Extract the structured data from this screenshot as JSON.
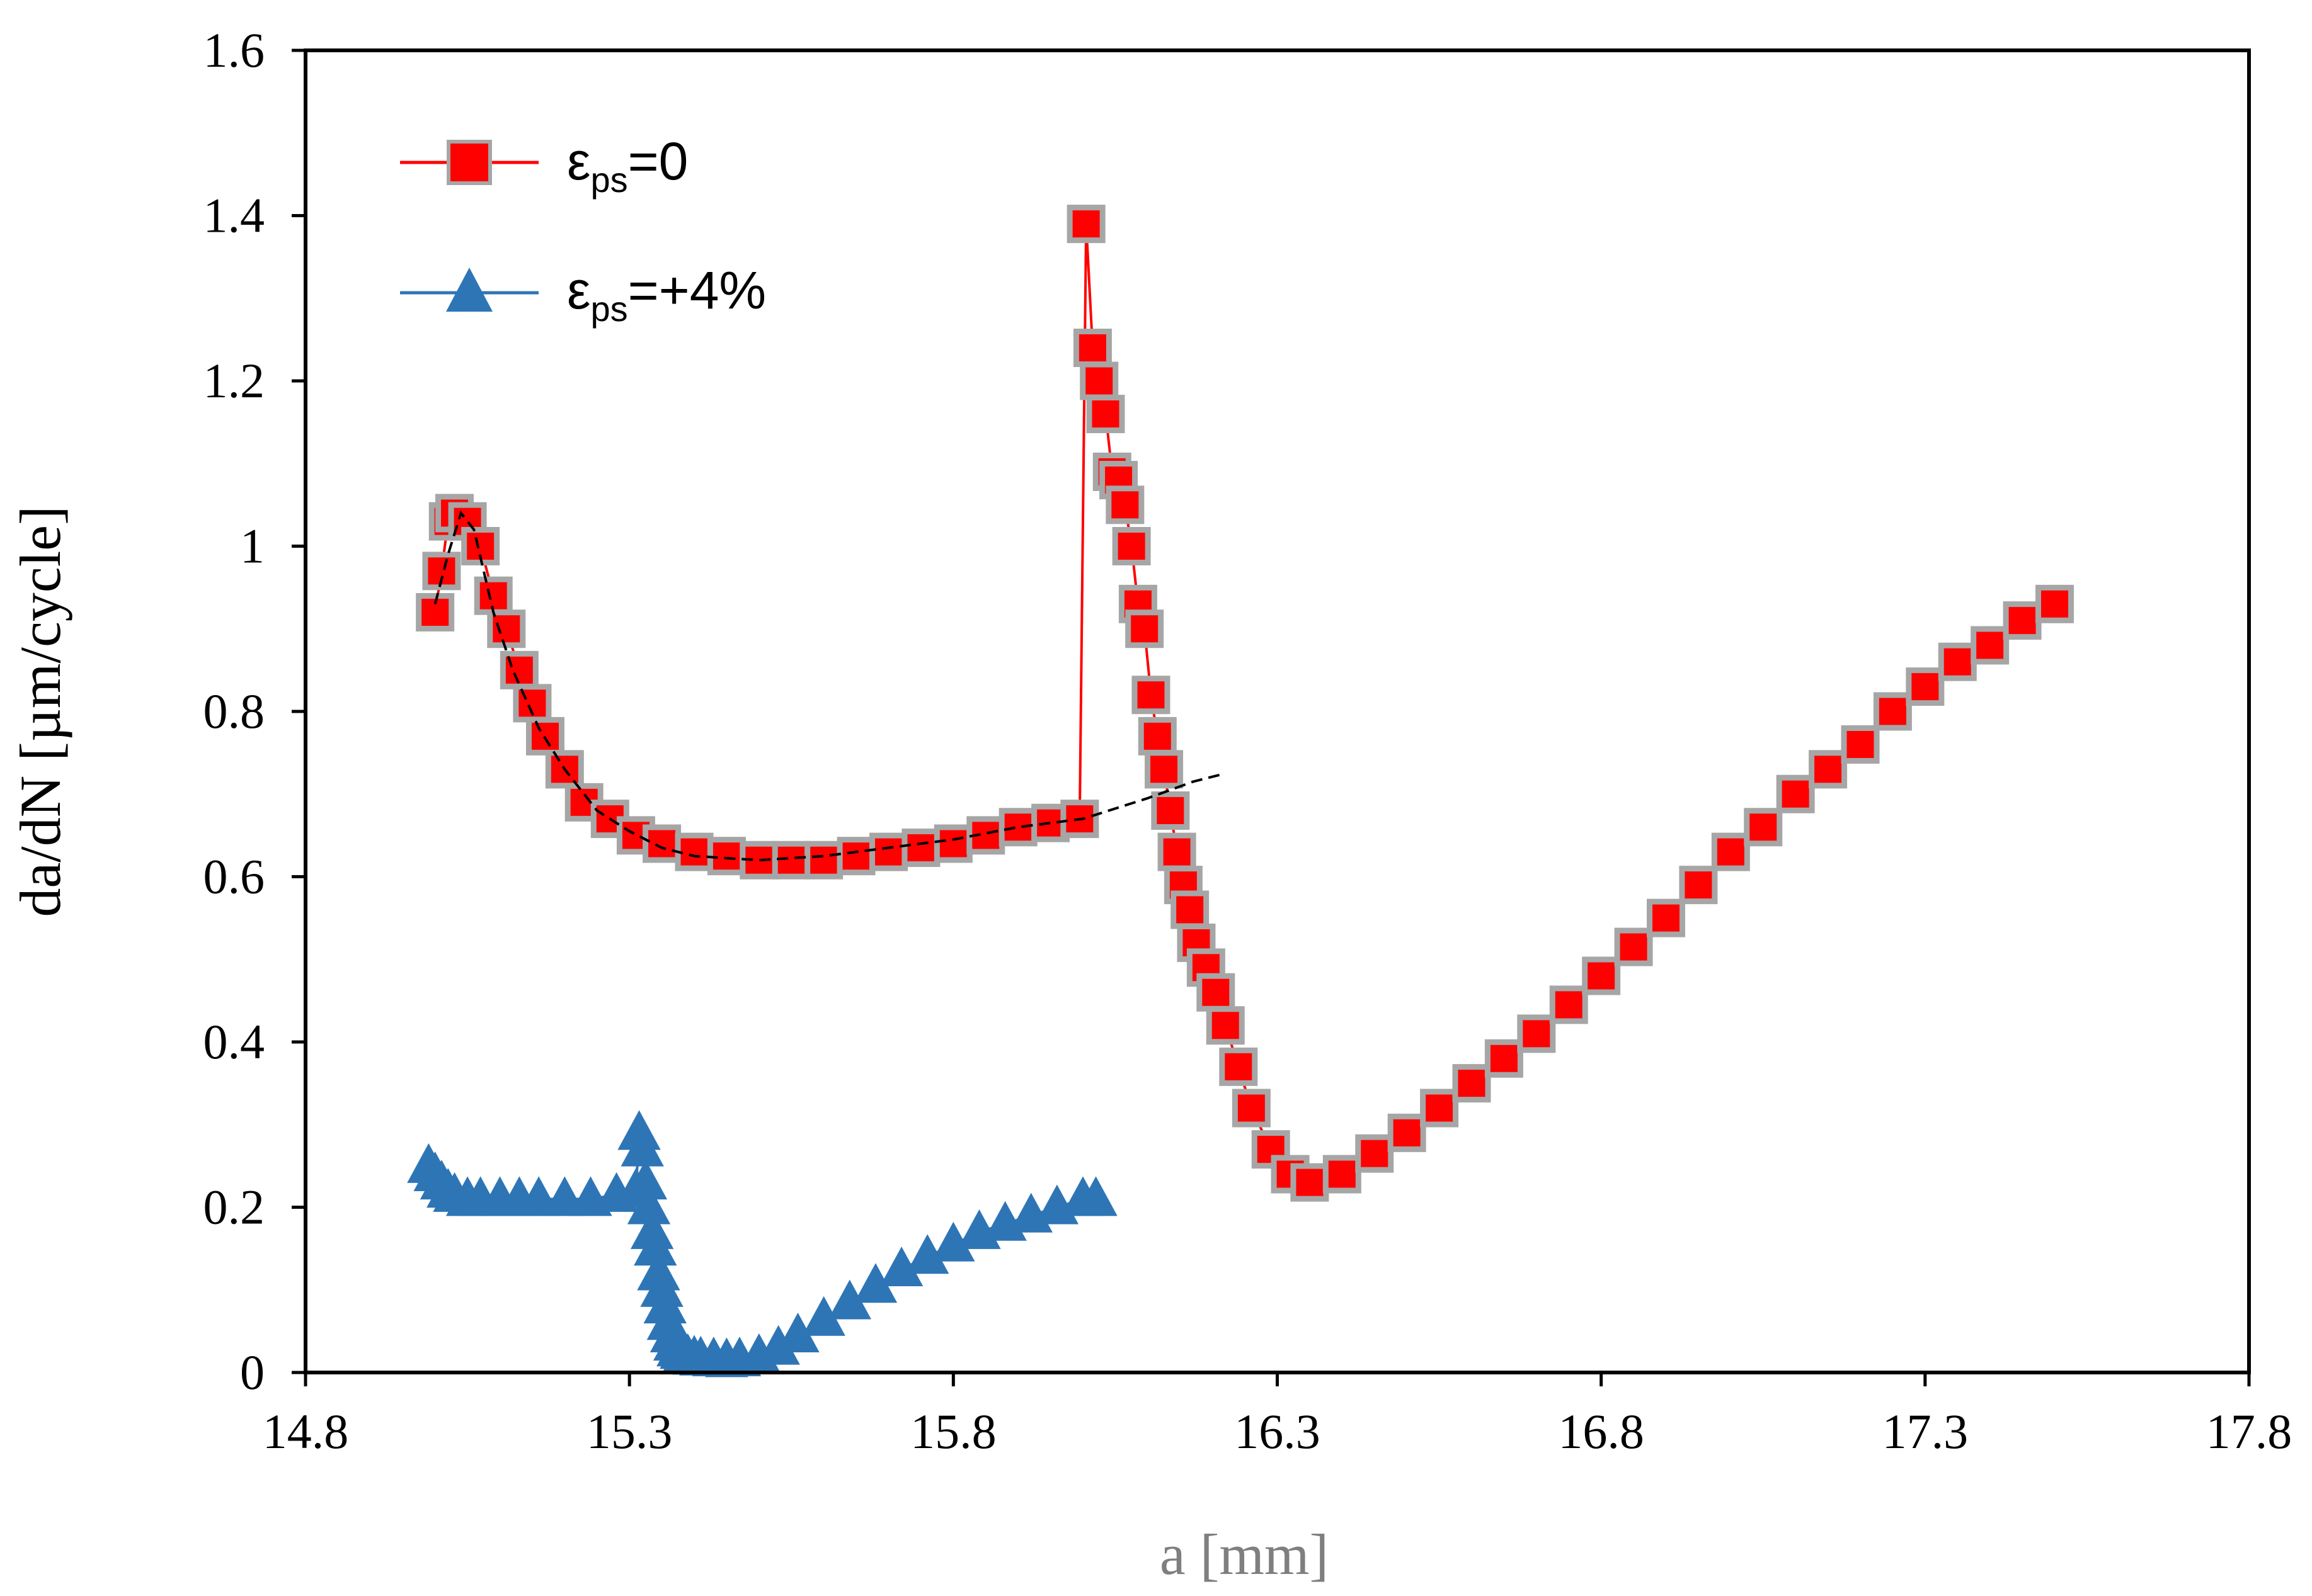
{
  "chart_data": {
    "type": "scatter",
    "title": "",
    "xlabel": "a [mm]",
    "ylabel": "da/dN [µm/cycle]",
    "xlim": [
      14.8,
      17.8
    ],
    "ylim": [
      0,
      1.6
    ],
    "x_ticks": [
      "14.8",
      "15.3",
      "15.8",
      "16.3",
      "16.8",
      "17.3",
      "17.8"
    ],
    "y_ticks": [
      "0",
      "0.2",
      "0.4",
      "0.6",
      "0.8",
      "1",
      "1.2",
      "1.4",
      "1.6"
    ],
    "grid": false,
    "legend_position": "top-left",
    "colors": {
      "series1_marker": "#ff0000",
      "series1_outline": "#a6a6a6",
      "series2_marker": "#2e75b6",
      "trend_line": "#000000",
      "x_title": "#7f7f7f"
    },
    "series": [
      {
        "name": "εps=0",
        "legend_symbol": "ε",
        "legend_sub": "ps",
        "legend_suffix": "=0",
        "marker": "square",
        "x": [
          15.0,
          15.01,
          15.02,
          15.03,
          15.05,
          15.07,
          15.09,
          15.11,
          15.13,
          15.15,
          15.17,
          15.2,
          15.23,
          15.27,
          15.31,
          15.35,
          15.4,
          15.45,
          15.5,
          15.55,
          15.6,
          15.65,
          15.7,
          15.75,
          15.8,
          15.85,
          15.9,
          15.95,
          15.995,
          16.005,
          16.015,
          16.025,
          16.035,
          16.045,
          16.055,
          16.065,
          16.075,
          16.085,
          16.095,
          16.105,
          16.115,
          16.125,
          16.135,
          16.145,
          16.155,
          16.165,
          16.175,
          16.19,
          16.205,
          16.22,
          16.24,
          16.26,
          16.29,
          16.32,
          16.35,
          16.4,
          16.45,
          16.5,
          16.55,
          16.6,
          16.65,
          16.7,
          16.75,
          16.8,
          16.85,
          16.9,
          16.95,
          17.0,
          17.05,
          17.1,
          17.15,
          17.2,
          17.25,
          17.3,
          17.35,
          17.4,
          17.45,
          17.5
        ],
        "y": [
          0.92,
          0.97,
          1.03,
          1.04,
          1.03,
          1.0,
          0.94,
          0.9,
          0.85,
          0.81,
          0.77,
          0.73,
          0.69,
          0.67,
          0.65,
          0.64,
          0.63,
          0.625,
          0.62,
          0.62,
          0.62,
          0.625,
          0.63,
          0.635,
          0.64,
          0.65,
          0.66,
          0.665,
          0.67,
          1.39,
          1.24,
          1.2,
          1.16,
          1.09,
          1.08,
          1.05,
          1.0,
          0.93,
          0.9,
          0.82,
          0.77,
          0.73,
          0.68,
          0.63,
          0.59,
          0.56,
          0.52,
          0.49,
          0.46,
          0.42,
          0.37,
          0.32,
          0.27,
          0.24,
          0.23,
          0.24,
          0.265,
          0.29,
          0.32,
          0.35,
          0.38,
          0.41,
          0.445,
          0.48,
          0.515,
          0.55,
          0.59,
          0.63,
          0.66,
          0.7,
          0.73,
          0.76,
          0.8,
          0.83,
          0.86,
          0.88,
          0.91,
          0.93
        ]
      },
      {
        "name": "εps=+4%",
        "legend_symbol": "ε",
        "legend_sub": "ps",
        "legend_suffix": "=+4%",
        "marker": "triangle",
        "x": [
          14.99,
          15.0,
          15.01,
          15.02,
          15.03,
          15.05,
          15.07,
          15.1,
          15.13,
          15.16,
          15.2,
          15.24,
          15.28,
          15.31,
          15.315,
          15.32,
          15.325,
          15.33,
          15.335,
          15.34,
          15.345,
          15.35,
          15.355,
          15.36,
          15.365,
          15.37,
          15.375,
          15.38,
          15.385,
          15.39,
          15.4,
          15.41,
          15.43,
          15.45,
          15.47,
          15.5,
          15.53,
          15.56,
          15.6,
          15.64,
          15.68,
          15.72,
          15.76,
          15.8,
          15.84,
          15.88,
          15.92,
          15.96,
          16.0,
          16.02
        ],
        "y": [
          0.25,
          0.24,
          0.23,
          0.22,
          0.215,
          0.21,
          0.21,
          0.21,
          0.21,
          0.21,
          0.21,
          0.21,
          0.215,
          0.22,
          0.29,
          0.27,
          0.23,
          0.2,
          0.17,
          0.15,
          0.12,
          0.1,
          0.08,
          0.06,
          0.045,
          0.035,
          0.028,
          0.025,
          0.022,
          0.02,
          0.018,
          0.017,
          0.016,
          0.015,
          0.016,
          0.02,
          0.03,
          0.045,
          0.065,
          0.085,
          0.105,
          0.125,
          0.14,
          0.155,
          0.17,
          0.18,
          0.19,
          0.2,
          0.21,
          0.21
        ]
      }
    ],
    "trend_line": {
      "style": "dashed",
      "x": [
        15.0,
        15.02,
        15.04,
        15.06,
        15.09,
        15.12,
        15.16,
        15.2,
        15.25,
        15.3,
        15.35,
        15.4,
        15.5,
        15.6,
        15.7,
        15.8,
        15.9,
        16.0,
        16.1,
        16.17,
        16.22
      ],
      "y": [
        0.93,
        0.99,
        1.04,
        1.02,
        0.92,
        0.85,
        0.78,
        0.73,
        0.68,
        0.655,
        0.635,
        0.625,
        0.62,
        0.625,
        0.635,
        0.645,
        0.66,
        0.67,
        0.695,
        0.715,
        0.725
      ]
    }
  }
}
